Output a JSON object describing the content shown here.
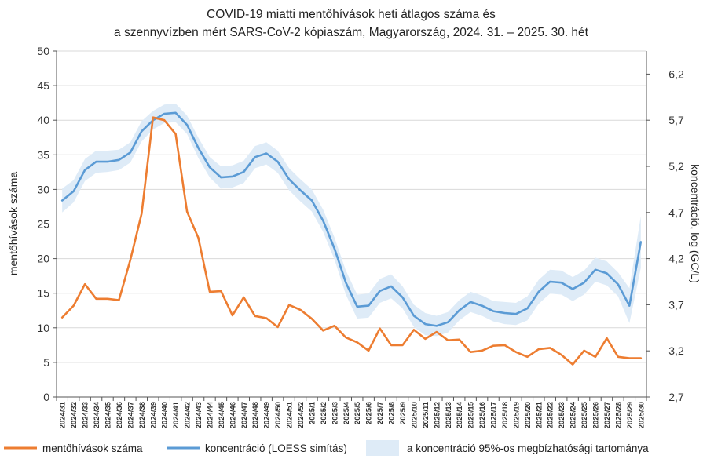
{
  "chart_data": {
    "type": "line",
    "title_line1": "COVID-19 miatti mentőhívások heti átlagos száma és",
    "title_line2": "a szennyvízben mért SARS-CoV-2 kópiaszám, Magyarország, 2024. 31. – 2025. 30. hét",
    "ylabel_left": "mentőhívások száma",
    "ylabel_right": "koncentráció, log (GC/L)",
    "ylim_left": [
      0,
      50
    ],
    "yticks_left": [
      "0",
      "5",
      "10",
      "15",
      "20",
      "25",
      "30",
      "35",
      "40",
      "45",
      "50"
    ],
    "ylim_right": [
      2.7,
      6.45
    ],
    "yticks_right": [
      "2,7",
      "3,2",
      "3,7",
      "4,2",
      "4,7",
      "5,2",
      "5,7",
      "6,2"
    ],
    "yticks_right_values": [
      2.7,
      3.2,
      3.7,
      4.2,
      4.7,
      5.2,
      5.7,
      6.2
    ],
    "categories": [
      "2024/31",
      "2024/32",
      "2024/33",
      "2024/34",
      "2024/35",
      "2024/36",
      "2024/37",
      "2024/38",
      "2024/39",
      "2024/40",
      "2024/41",
      "2024/42",
      "2024/43",
      "2024/44",
      "2024/45",
      "2024/46",
      "2024/47",
      "2024/48",
      "2024/49",
      "2024/50",
      "2024/51",
      "2024/52",
      "2025/1",
      "2025/2",
      "2025/3",
      "2025/4",
      "2025/5",
      "2025/6",
      "2025/7",
      "2025/8",
      "2025/9",
      "2025/10",
      "2025/11",
      "2025/12",
      "2025/13",
      "2025/14",
      "2025/15",
      "2025/16",
      "2025/17",
      "2025/18",
      "2025/19",
      "2025/20",
      "2025/21",
      "2025/22",
      "2025/23",
      "2025/24",
      "2025/25",
      "2025/26",
      "2025/27",
      "2025/28",
      "2025/29",
      "2025/30"
    ],
    "series": [
      {
        "name": "mentőhívások száma",
        "axis": "left",
        "color": "#ED7D31",
        "values": [
          11.5,
          13.2,
          16.3,
          14.2,
          14.2,
          14.0,
          19.8,
          26.5,
          40.4,
          40.0,
          38.0,
          26.8,
          23.0,
          15.2,
          15.3,
          11.8,
          14.4,
          11.7,
          11.4,
          10.1,
          13.3,
          12.6,
          11.3,
          9.6,
          10.3,
          8.6,
          7.9,
          6.7,
          9.9,
          7.5,
          7.5,
          9.7,
          8.4,
          9.4,
          8.2,
          8.3,
          6.5,
          6.7,
          7.4,
          7.5,
          6.5,
          5.8,
          6.9,
          7.1,
          6.1,
          4.7,
          6.7,
          5.8,
          8.5,
          5.8,
          5.6,
          5.6
        ]
      },
      {
        "name": "koncentráció (LOESS simítás)",
        "axis": "right",
        "color": "#5B9BD5",
        "values": [
          4.83,
          4.93,
          5.16,
          5.25,
          5.25,
          5.27,
          5.35,
          5.58,
          5.7,
          5.77,
          5.78,
          5.65,
          5.4,
          5.19,
          5.08,
          5.09,
          5.14,
          5.3,
          5.34,
          5.25,
          5.06,
          4.94,
          4.83,
          4.61,
          4.31,
          3.94,
          3.68,
          3.69,
          3.85,
          3.9,
          3.78,
          3.58,
          3.49,
          3.47,
          3.51,
          3.64,
          3.73,
          3.69,
          3.63,
          3.61,
          3.6,
          3.66,
          3.84,
          3.95,
          3.94,
          3.87,
          3.94,
          4.08,
          4.04,
          3.92,
          3.69,
          4.38
        ]
      }
    ],
    "confidence_band": {
      "name": "a koncentráció 95%-os megbízhatósági tartománya",
      "color": "#DEEBF7",
      "lower": [
        4.7,
        4.81,
        5.04,
        5.13,
        5.14,
        5.16,
        5.24,
        5.47,
        5.6,
        5.67,
        5.68,
        5.55,
        5.29,
        5.08,
        4.96,
        4.97,
        5.02,
        5.18,
        5.22,
        5.13,
        4.94,
        4.82,
        4.71,
        4.49,
        4.19,
        3.81,
        3.55,
        3.56,
        3.72,
        3.77,
        3.66,
        3.46,
        3.37,
        3.36,
        3.4,
        3.53,
        3.62,
        3.58,
        3.52,
        3.49,
        3.48,
        3.53,
        3.71,
        3.82,
        3.81,
        3.74,
        3.81,
        3.95,
        3.91,
        3.79,
        3.5,
        4.1
      ],
      "upper": [
        4.96,
        5.05,
        5.28,
        5.37,
        5.37,
        5.38,
        5.46,
        5.69,
        5.8,
        5.87,
        5.88,
        5.75,
        5.51,
        5.3,
        5.2,
        5.21,
        5.26,
        5.42,
        5.46,
        5.37,
        5.18,
        5.06,
        4.95,
        4.73,
        4.43,
        4.07,
        3.81,
        3.82,
        3.98,
        4.03,
        3.9,
        3.7,
        3.61,
        3.58,
        3.62,
        3.75,
        3.84,
        3.8,
        3.74,
        3.73,
        3.72,
        3.79,
        3.97,
        4.08,
        4.07,
        4.0,
        4.07,
        4.21,
        4.17,
        4.05,
        3.88,
        4.66
      ]
    },
    "legend_position": "bottom",
    "grid": "horizontal"
  }
}
